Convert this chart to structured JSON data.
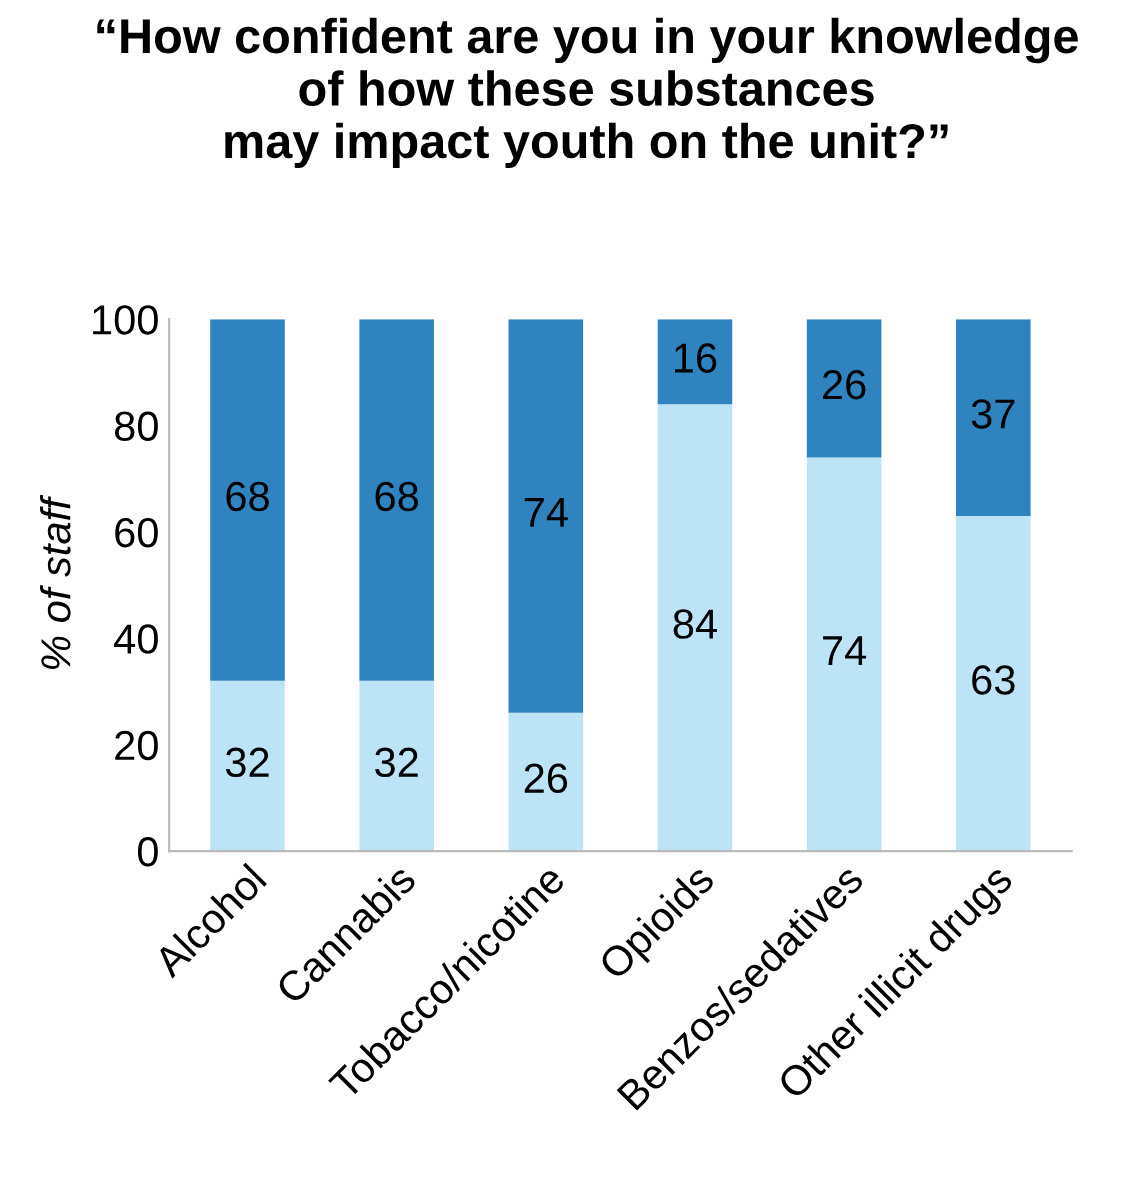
{
  "chart_data": {
    "type": "bar",
    "title": "“How confident are you in your knowledge\nof how these substances\nmay impact youth on the unit?”",
    "ylabel": "% of staff",
    "categories": [
      "Alcohol",
      "Cannabis",
      "Tobacco/nicotine",
      "Opioids",
      "Benzos/sedatives",
      "Other illicit drugs"
    ],
    "series": [
      {
        "color": "#bde3f7",
        "values": [
          32,
          32,
          26,
          84,
          74,
          63
        ]
      },
      {
        "color": "#2f84bf",
        "values": [
          68,
          68,
          74,
          16,
          26,
          37
        ]
      }
    ],
    "stacked": true,
    "data_labels": true,
    "ylim": [
      0,
      100
    ],
    "yticks": [
      0,
      20,
      40,
      60,
      80,
      100
    ],
    "grid": false,
    "legend": false
  }
}
